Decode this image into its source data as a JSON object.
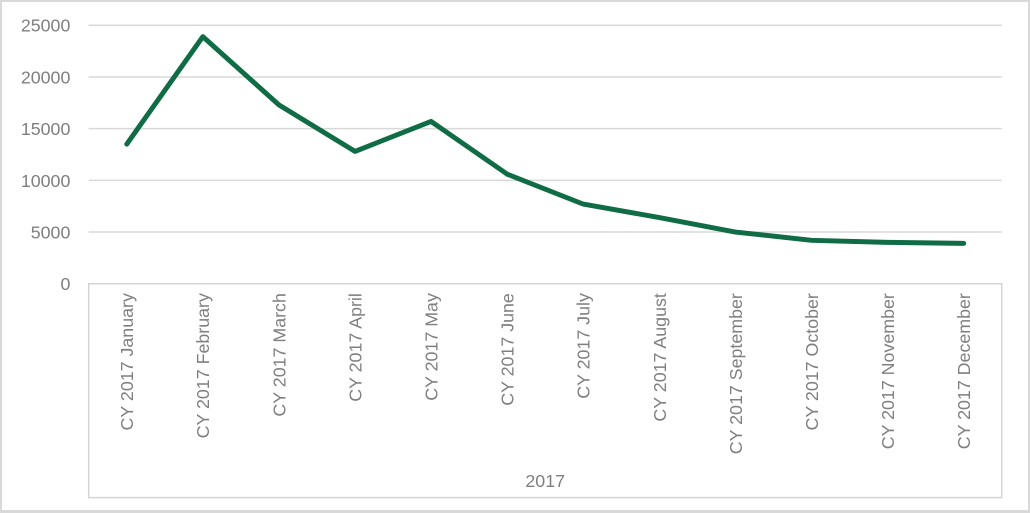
{
  "chart_data": {
    "type": "line",
    "title": "",
    "xlabel": "2017",
    "ylabel": "",
    "categories": [
      "CY 2017 January",
      "CY 2017 February",
      "CY 2017 March",
      "CY 2017 April",
      "CY 2017 May",
      "CY 2017 June",
      "CY 2017 July",
      "CY 2017 August",
      "CY 2017 September",
      "CY 2017 October",
      "CY 2017 November",
      "CY 2017 December"
    ],
    "values": [
      13500,
      23900,
      17300,
      12800,
      15700,
      10600,
      7700,
      6400,
      5000,
      4200,
      4000,
      3900
    ],
    "ylim": [
      0,
      25000
    ],
    "y_ticks": [
      0,
      5000,
      10000,
      15000,
      20000,
      25000
    ],
    "grid": true,
    "legend": false,
    "category_label_rotation_deg": -90,
    "colors": {
      "line": "#0f6c45",
      "labels": "#7f7f7f",
      "gridlines": "#d9d9d9",
      "axis_box": "#d4d4d4",
      "frame": "#d9d9d9",
      "background": "#ffffff"
    }
  }
}
